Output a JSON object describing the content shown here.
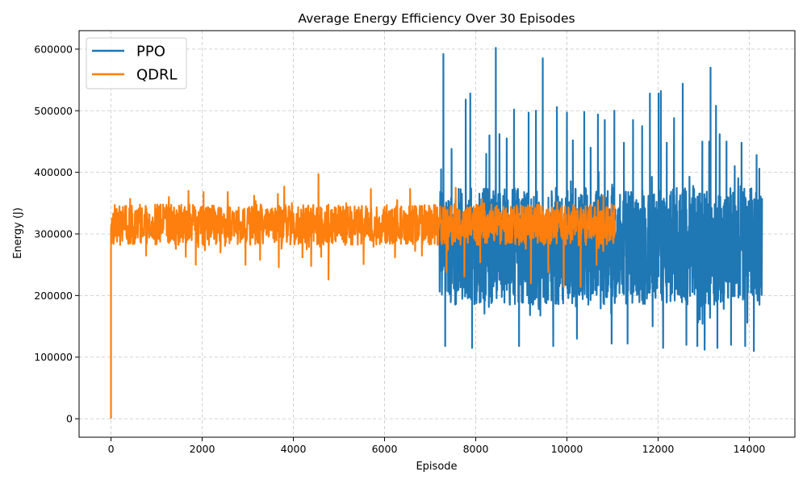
{
  "chart_data": {
    "type": "line",
    "title": "Average Energy Efficiency Over 30 Episodes",
    "xlabel": "Episode",
    "ylabel": "Energy (J)",
    "xlim": [
      -700,
      15000
    ],
    "ylim": [
      -30000,
      630000
    ],
    "xticks": [
      0,
      2000,
      4000,
      6000,
      8000,
      10000,
      12000,
      14000
    ],
    "yticks": [
      0,
      100000,
      200000,
      300000,
      400000,
      500000,
      600000
    ],
    "grid": true,
    "legend_position": "top-left",
    "series": [
      {
        "name": "PPO",
        "color": "#1f77b4",
        "x_start": 7200,
        "x_end": 14280,
        "baseline_low": 185000,
        "baseline_high": 375000,
        "peaks": [
          [
            7240,
            405000
          ],
          [
            7290,
            592000
          ],
          [
            7330,
            118000
          ],
          [
            7470,
            438000
          ],
          [
            7780,
            518000
          ],
          [
            7880,
            528000
          ],
          [
            7920,
            115000
          ],
          [
            8230,
            430000
          ],
          [
            8300,
            460000
          ],
          [
            8440,
            602000
          ],
          [
            8520,
            462000
          ],
          [
            8680,
            455000
          ],
          [
            8840,
            502000
          ],
          [
            8950,
            118000
          ],
          [
            9160,
            497000
          ],
          [
            9320,
            500000
          ],
          [
            9470,
            585000
          ],
          [
            9700,
            118000
          ],
          [
            9780,
            506000
          ],
          [
            10000,
            497000
          ],
          [
            10130,
            452000
          ],
          [
            10220,
            130000
          ],
          [
            10380,
            498000
          ],
          [
            10520,
            440000
          ],
          [
            10680,
            494000
          ],
          [
            10830,
            485000
          ],
          [
            10980,
            122000
          ],
          [
            11040,
            500000
          ],
          [
            11250,
            448000
          ],
          [
            11330,
            122000
          ],
          [
            11450,
            485000
          ],
          [
            11650,
            475000
          ],
          [
            11820,
            528000
          ],
          [
            11880,
            150000
          ],
          [
            12010,
            528000
          ],
          [
            12060,
            532000
          ],
          [
            12110,
            115000
          ],
          [
            12190,
            448000
          ],
          [
            12350,
            488000
          ],
          [
            12540,
            544000
          ],
          [
            12620,
            120000
          ],
          [
            12770,
            378000
          ],
          [
            12860,
            118000
          ],
          [
            12970,
            450000
          ],
          [
            13020,
            112000
          ],
          [
            13120,
            450000
          ],
          [
            13150,
            570000
          ],
          [
            13270,
            508000
          ],
          [
            13300,
            115000
          ],
          [
            13350,
            462000
          ],
          [
            13500,
            450000
          ],
          [
            13600,
            120000
          ],
          [
            13680,
            410000
          ],
          [
            13830,
            448000
          ],
          [
            13910,
            118000
          ],
          [
            14040,
            360000
          ],
          [
            14100,
            110000
          ],
          [
            14160,
            428000
          ],
          [
            14220,
            406000
          ]
        ]
      },
      {
        "name": "QDRL",
        "color": "#ff7f0e",
        "x_start": 0,
        "x_end": 11060,
        "baseline_low": 282000,
        "baseline_high": 348000,
        "peaks": [
          [
            0,
            0
          ],
          [
            20,
            325000
          ],
          [
            420,
            357000
          ],
          [
            770,
            265000
          ],
          [
            1270,
            360000
          ],
          [
            1640,
            263000
          ],
          [
            1700,
            370000
          ],
          [
            1860,
            250000
          ],
          [
            2030,
            368000
          ],
          [
            2400,
            270000
          ],
          [
            2560,
            368000
          ],
          [
            2950,
            250000
          ],
          [
            3140,
            362000
          ],
          [
            3270,
            258000
          ],
          [
            3660,
            365000
          ],
          [
            3680,
            246000
          ],
          [
            3800,
            377000
          ],
          [
            4200,
            262000
          ],
          [
            4390,
            248000
          ],
          [
            4550,
            397000
          ],
          [
            4610,
            263000
          ],
          [
            4770,
            226000
          ],
          [
            5160,
            350000
          ],
          [
            5540,
            251000
          ],
          [
            5700,
            373000
          ],
          [
            6230,
            262000
          ],
          [
            6560,
            373000
          ],
          [
            6820,
            265000
          ],
          [
            7360,
            238000
          ],
          [
            7560,
            375000
          ],
          [
            7750,
            231000
          ],
          [
            8100,
            254000
          ],
          [
            8480,
            340000
          ],
          [
            9210,
            220000
          ],
          [
            9590,
            238000
          ],
          [
            9930,
            214000
          ],
          [
            10300,
            214000
          ],
          [
            10650,
            250000
          ],
          [
            10800,
            362000
          ],
          [
            11060,
            300000
          ]
        ]
      }
    ]
  }
}
